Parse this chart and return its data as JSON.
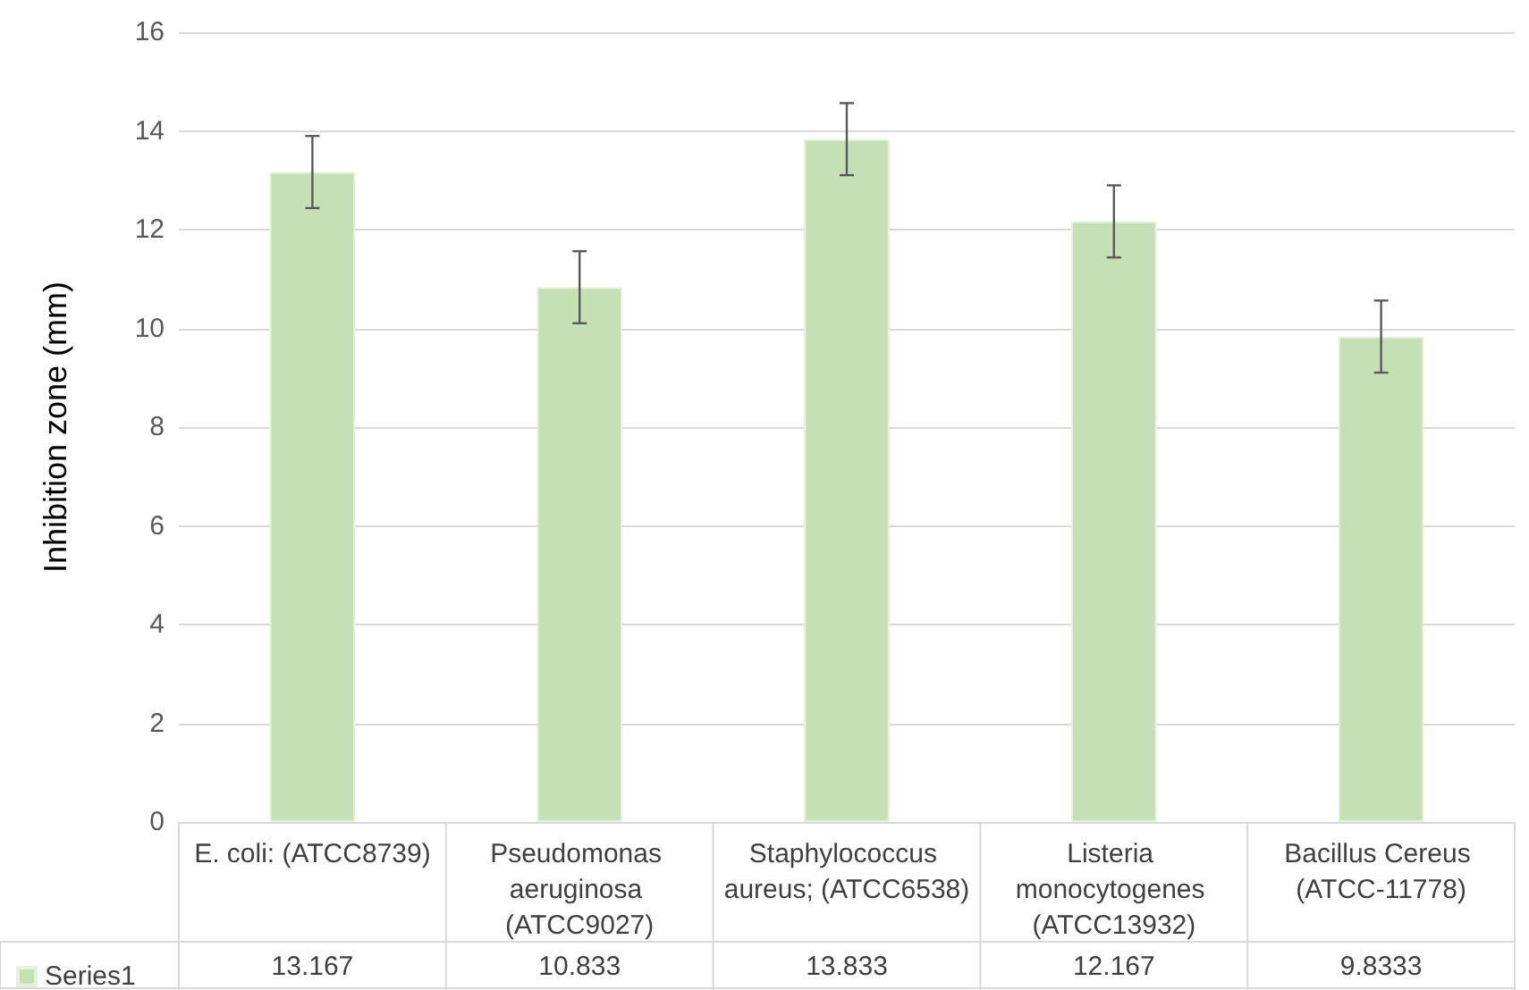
{
  "chart_data": {
    "type": "bar",
    "ylabel": "Inhibition zone (mm)",
    "categories": [
      "E. coli: (ATCC8739)",
      "Pseudomonas aeruginosa (ATCC9027)",
      "Staphylococcus aureus; (ATCC6538)",
      "Listeria monocytogenes (ATCC13932)",
      "Bacillus Cereus (ATCC-11778)"
    ],
    "series": [
      {
        "name": "Series1",
        "color": "#c5e0b4",
        "values": [
          13.167,
          10.833,
          13.833,
          12.167,
          9.8333
        ],
        "errors": [
          0.73,
          0.73,
          0.73,
          0.73,
          0.73
        ]
      }
    ],
    "ylim": [
      0,
      16
    ],
    "yticks": [
      0,
      2,
      4,
      6,
      8,
      10,
      12,
      14,
      16
    ],
    "grid": "y",
    "legend": "bottom left",
    "data_labels": true
  }
}
